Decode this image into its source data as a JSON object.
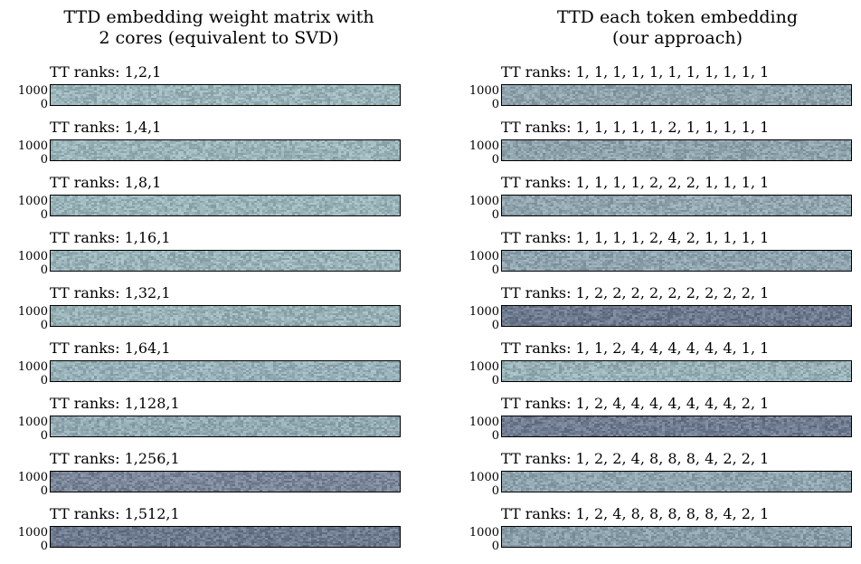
{
  "chart_data": {
    "type": "heatmap",
    "panels": [
      {
        "column": "left",
        "title": "TTD embedding weight matrix with\n2 cores (equivalent to SVD)",
        "subplots": [
          {
            "title": "TT ranks: 1,2,1",
            "yticks": [
              "1000",
              "0"
            ],
            "tone": "#99b3b9"
          },
          {
            "title": "TT ranks: 1,4,1",
            "yticks": [
              "1000",
              "0"
            ],
            "tone": "#99b3b9"
          },
          {
            "title": "TT ranks: 1,8,1",
            "yticks": [
              "1000",
              "0"
            ],
            "tone": "#99b3b9"
          },
          {
            "title": "TT ranks: 1,16,1",
            "yticks": [
              "1000",
              "0"
            ],
            "tone": "#98b2b8"
          },
          {
            "title": "TT ranks: 1,32,1",
            "yticks": [
              "1000",
              "0"
            ],
            "tone": "#98b1b7"
          },
          {
            "title": "TT ranks: 1,64,1",
            "yticks": [
              "1000",
              "0"
            ],
            "tone": "#97afb6"
          },
          {
            "title": "TT ranks: 1,128,1",
            "yticks": [
              "1000",
              "0"
            ],
            "tone": "#93a9b1"
          },
          {
            "title": "TT ranks: 1,256,1",
            "yticks": [
              "1000",
              "0"
            ],
            "tone": "#7a8697"
          },
          {
            "title": "TT ranks: 1,512,1",
            "yticks": [
              "1000",
              "0"
            ],
            "tone": "#6e7a8d"
          }
        ]
      },
      {
        "column": "right",
        "title": "TTD each token embedding\n(our approach)",
        "subplots": [
          {
            "title": "TT ranks: 1, 1, 1, 1, 1, 1, 1, 1, 1, 1, 1",
            "yticks": [
              "1000",
              "0"
            ],
            "tone": "#8fa3ad"
          },
          {
            "title": "TT ranks: 1, 1, 1, 1, 1, 2, 1, 1, 1, 1, 1",
            "yticks": [
              "1000",
              "0"
            ],
            "tone": "#8ea2ac"
          },
          {
            "title": "TT ranks: 1, 1, 1, 1, 2, 2, 2, 1, 1, 1, 1",
            "yticks": [
              "1000",
              "0"
            ],
            "tone": "#90a5ae"
          },
          {
            "title": "TT ranks: 1, 1, 1, 1, 2, 4, 2, 1, 1, 1, 1",
            "yticks": [
              "1000",
              "0"
            ],
            "tone": "#8ea3ad"
          },
          {
            "title": "TT ranks: 1, 2, 2, 2, 2, 2, 2, 2, 2, 2, 1",
            "yticks": [
              "1000",
              "0"
            ],
            "tone": "#6d7a8e"
          },
          {
            "title": "TT ranks: 1, 1, 2, 4, 4, 4, 4, 4, 4, 1, 1",
            "yticks": [
              "1000",
              "0"
            ],
            "tone": "#97b0b6"
          },
          {
            "title": "TT ranks: 1, 2, 4, 4, 4, 4, 4, 4, 4, 2, 1",
            "yticks": [
              "1000",
              "0"
            ],
            "tone": "#707c90"
          },
          {
            "title": "TT ranks: 1, 2, 2, 4, 8, 8, 8, 4, 2, 2, 1",
            "yticks": [
              "1000",
              "0"
            ],
            "tone": "#8ea3ad"
          },
          {
            "title": "TT ranks: 1, 2, 4, 8, 8, 8, 8, 8, 4, 2, 1",
            "yticks": [
              "1000",
              "0"
            ],
            "tone": "#8a9eaa"
          }
        ]
      }
    ]
  }
}
